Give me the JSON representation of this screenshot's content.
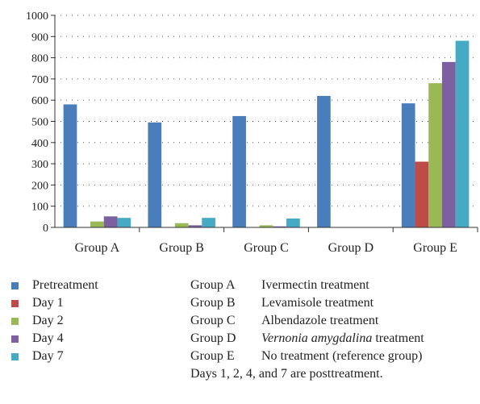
{
  "chart_data": {
    "type": "bar",
    "categories": [
      "Group A",
      "Group B",
      "Group C",
      "Group D",
      "Group E"
    ],
    "series": [
      {
        "name": "Pretreatment",
        "color": "#4a7ebb",
        "values": [
          580,
          495,
          525,
          620,
          585
        ]
      },
      {
        "name": "Day 1",
        "color": "#be4b48",
        "values": [
          0,
          0,
          0,
          0,
          310
        ]
      },
      {
        "name": "Day 2",
        "color": "#98b954",
        "values": [
          28,
          20,
          10,
          0,
          680
        ]
      },
      {
        "name": "Day 4",
        "color": "#7d60a0",
        "values": [
          52,
          10,
          5,
          0,
          780
        ]
      },
      {
        "name": "Day 7",
        "color": "#46aac5",
        "values": [
          45,
          45,
          42,
          0,
          880
        ]
      }
    ],
    "ylim": [
      0,
      1000
    ],
    "yticks": [
      "0",
      "100",
      "200",
      "300",
      "400",
      "500",
      "600",
      "700",
      "800",
      "900",
      "1000"
    ],
    "grid": "dotted horizontal"
  },
  "groups": [
    {
      "code": "Group A",
      "desc_plain": "Ivermectin treatment",
      "desc_italic": "",
      "desc_rest": ""
    },
    {
      "code": "Group B",
      "desc_plain": "Levamisole treatment",
      "desc_italic": "",
      "desc_rest": ""
    },
    {
      "code": "Group C",
      "desc_plain": "Albendazole treatment",
      "desc_italic": "",
      "desc_rest": ""
    },
    {
      "code": "Group D",
      "desc_plain": "",
      "desc_italic": "Vernonia amygdalina",
      "desc_rest": " treatment"
    },
    {
      "code": "Group E",
      "desc_plain": "No treatment (reference group)",
      "desc_italic": "",
      "desc_rest": ""
    }
  ],
  "note": "Days 1, 2, 4, and 7 are posttreatment."
}
